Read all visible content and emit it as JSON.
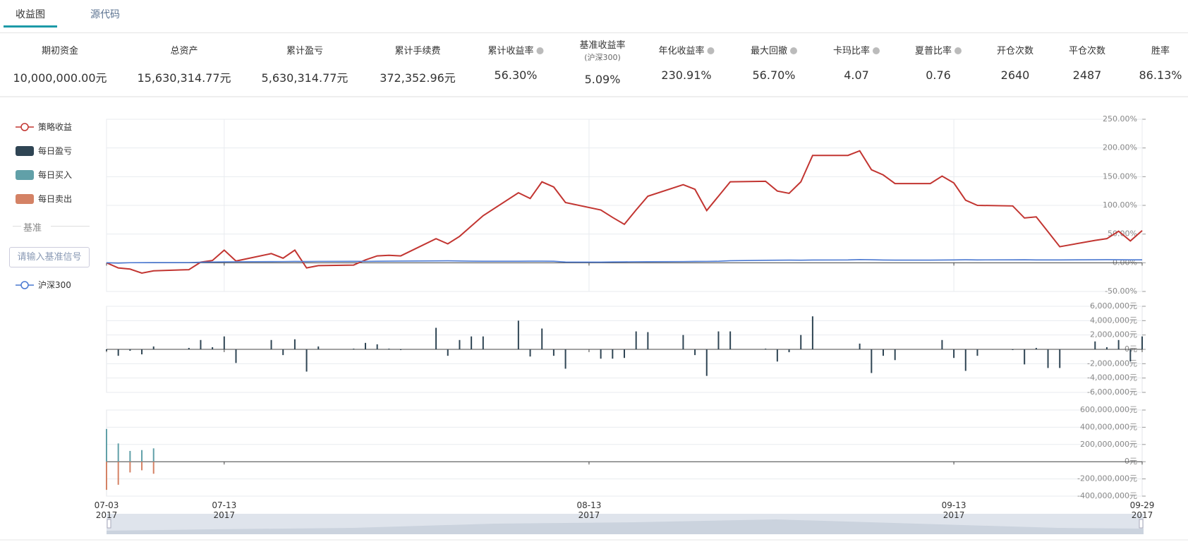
{
  "tabs": {
    "items": [
      "收益图",
      "源代码"
    ],
    "active": 0
  },
  "stats": [
    {
      "label": "期初资金",
      "value": "10,000,000.00元"
    },
    {
      "label": "总资产",
      "value": "15,630,314.77元"
    },
    {
      "label": "累计盈亏",
      "value": "5,630,314.77元"
    },
    {
      "label": "累计手续费",
      "value": "372,352.96元"
    },
    {
      "label": "累计收益率",
      "value": "56.30%",
      "info": true
    },
    {
      "label": "基准收益率",
      "sublabel": "(沪深300)",
      "value": "5.09%"
    },
    {
      "label": "年化收益率",
      "value": "230.91%",
      "info": true
    },
    {
      "label": "最大回撤",
      "value": "56.70%",
      "info": true
    },
    {
      "label": "卡玛比率",
      "value": "4.07",
      "info": true
    },
    {
      "label": "夏普比率",
      "value": "0.76",
      "info": true
    },
    {
      "label": "开仓次数",
      "value": "2640"
    },
    {
      "label": "平仓次数",
      "value": "2487"
    },
    {
      "label": "胜率",
      "value": "86.13%"
    }
  ],
  "benchmark_panel": {
    "title": "基准",
    "placeholder": "请输入基准信号"
  },
  "chart_data": [
    {
      "type": "line",
      "grid": true,
      "xgrid": true,
      "x": [
        "2017-07-03",
        "2017-07-04",
        "2017-07-05",
        "2017-07-06",
        "2017-07-07",
        "2017-07-10",
        "2017-07-11",
        "2017-07-12",
        "2017-07-13",
        "2017-07-14",
        "2017-07-17",
        "2017-07-18",
        "2017-07-19",
        "2017-07-20",
        "2017-07-21",
        "2017-07-24",
        "2017-07-25",
        "2017-07-26",
        "2017-07-27",
        "2017-07-28",
        "2017-07-31",
        "2017-08-01",
        "2017-08-02",
        "2017-08-03",
        "2017-08-04",
        "2017-08-07",
        "2017-08-08",
        "2017-08-09",
        "2017-08-10",
        "2017-08-11",
        "2017-08-14",
        "2017-08-15",
        "2017-08-16",
        "2017-08-17",
        "2017-08-18",
        "2017-08-21",
        "2017-08-22",
        "2017-08-23",
        "2017-08-24",
        "2017-08-25",
        "2017-08-28",
        "2017-08-29",
        "2017-08-30",
        "2017-08-31",
        "2017-09-01",
        "2017-09-04",
        "2017-09-05",
        "2017-09-06",
        "2017-09-07",
        "2017-09-08",
        "2017-09-11",
        "2017-09-12",
        "2017-09-13",
        "2017-09-14",
        "2017-09-15",
        "2017-09-18",
        "2017-09-19",
        "2017-09-20",
        "2017-09-21",
        "2017-09-22",
        "2017-09-25",
        "2017-09-26",
        "2017-09-27",
        "2017-09-28",
        "2017-09-29"
      ],
      "xlim": [
        "2017-07-03",
        "2017-09-29"
      ],
      "xticks": [
        {
          "value": "2017-07-03",
          "label": "07-03\n2017"
        },
        {
          "value": "2017-07-13",
          "label": "07-13\n2017"
        },
        {
          "value": "2017-08-13",
          "label": "08-13\n2017"
        },
        {
          "value": "2017-09-13",
          "label": "09-13\n2017"
        },
        {
          "value": "2017-09-29",
          "label": "09-29\n2017"
        }
      ],
      "ylim": [
        -50,
        250
      ],
      "yticks": [
        {
          "value": -50,
          "label": "-50.00%"
        },
        {
          "value": 0,
          "label": "0.00%"
        },
        {
          "value": 50,
          "label": "50.00%"
        },
        {
          "value": 100,
          "label": "100.00%"
        },
        {
          "value": 150,
          "label": "150.00%"
        },
        {
          "value": 200,
          "label": "200.00%"
        },
        {
          "value": 250,
          "label": "250.00%"
        }
      ],
      "series": [
        {
          "name": "策略收益",
          "color": "#c23531",
          "values": [
            0,
            -9,
            -11,
            -18,
            -14,
            -12,
            1,
            4,
            22,
            3,
            16,
            8,
            22,
            -9,
            -5,
            -4,
            5,
            12,
            13,
            12,
            42,
            33,
            46,
            64,
            82,
            122,
            112,
            141,
            132,
            105,
            92,
            79,
            67,
            92,
            116,
            136,
            128,
            91,
            116,
            141,
            142,
            125,
            121,
            141,
            187,
            187,
            195,
            162,
            153,
            138,
            138,
            151,
            139,
            109,
            100,
            99,
            78,
            80,
            54,
            28,
            39,
            42,
            55,
            38,
            56
          ]
        },
        {
          "name": "沪深300",
          "color": "#4a78d1",
          "values": [
            0,
            -0.6,
            0.1,
            0.2,
            0.3,
            0.4,
            0.9,
            1.3,
            1.6,
            1.8,
            2.0,
            2.1,
            2.3,
            2.2,
            2.4,
            2.5,
            2.4,
            2.6,
            2.8,
            3.0,
            3.2,
            3.4,
            3.1,
            2.8,
            2.6,
            2.7,
            2.8,
            2.8,
            2.6,
            1.2,
            1.1,
            1.4,
            1.6,
            1.8,
            1.9,
            2.1,
            2.3,
            2.4,
            2.6,
            3.6,
            4.3,
            4.5,
            4.6,
            4.5,
            4.8,
            5.0,
            5.6,
            5.2,
            4.8,
            4.6,
            4.6,
            4.8,
            5.0,
            5.2,
            5.0,
            5.1,
            5.3,
            5.0,
            4.9,
            5.0,
            5.2,
            5.4,
            5.3,
            5.1,
            5.09
          ]
        }
      ]
    },
    {
      "type": "bar",
      "grid": true,
      "ylim": [
        -6000000,
        6000000
      ],
      "yticks": [
        {
          "value": -6000000,
          "label": "-6,000,000元"
        },
        {
          "value": -4000000,
          "label": "-4,000,000元"
        },
        {
          "value": -2000000,
          "label": "-2,000,000元"
        },
        {
          "value": 0,
          "label": "0元"
        },
        {
          "value": 2000000,
          "label": "2,000,000元"
        },
        {
          "value": 4000000,
          "label": "4,000,000元"
        },
        {
          "value": 6000000,
          "label": "6,000,000元"
        }
      ],
      "series": [
        {
          "name": "每日盈亏",
          "color": "#2f4554",
          "values": [
            -200000,
            -900000,
            -200000,
            -700000,
            400000,
            200000,
            1300000,
            300000,
            1800000,
            -1900000,
            1300000,
            -800000,
            1400000,
            -3100000,
            400000,
            100000,
            900000,
            700000,
            100000,
            -100000,
            3000000,
            -900000,
            1300000,
            1800000,
            1800000,
            4000000,
            -1000000,
            2900000,
            -900000,
            -2700000,
            -1300000,
            -1300000,
            -1200000,
            2500000,
            2400000,
            2000000,
            -800000,
            -3700000,
            2500000,
            2500000,
            100000,
            -1700000,
            -400000,
            2000000,
            4600000,
            0,
            800000,
            -3300000,
            -900000,
            -1500000,
            0,
            1300000,
            -1200000,
            -3000000,
            -900000,
            -100000,
            -2100000,
            200000,
            -2600000,
            -2600000,
            1100000,
            300000,
            1300000,
            -1700000,
            1800000
          ]
        }
      ]
    },
    {
      "type": "bar",
      "grid": true,
      "ylim": [
        -400000000,
        600000000
      ],
      "yticks": [
        {
          "value": -400000000,
          "label": "-400,000,000元"
        },
        {
          "value": -200000000,
          "label": "-200,000,000元"
        },
        {
          "value": 0,
          "label": "0元"
        },
        {
          "value": 200000000,
          "label": "200,000,000元"
        },
        {
          "value": 400000000,
          "label": "400,000,000元"
        },
        {
          "value": 600000000,
          "label": "600,000,000元"
        }
      ],
      "series": [
        {
          "name": "每日买入",
          "color": "#61a0a8",
          "values": [
            380000000,
            212000000,
            125000000,
            135000000,
            155000000,
            0,
            0,
            0,
            0,
            0,
            0,
            0,
            0,
            0,
            0,
            0,
            0,
            0,
            0,
            0,
            0,
            0,
            0,
            0,
            0,
            0,
            0,
            0,
            0,
            0,
            0,
            0,
            0,
            0,
            0,
            0,
            0,
            0,
            0,
            0,
            0,
            0,
            0,
            0,
            0,
            0,
            0,
            0,
            0,
            0,
            0,
            0,
            0,
            0,
            0,
            0,
            0,
            0,
            0,
            0,
            0,
            0,
            0,
            0,
            0
          ]
        },
        {
          "name": "每日卖出",
          "color": "#d48265",
          "values": [
            -327000000,
            -268000000,
            -125000000,
            -100000000,
            -140000000,
            0,
            0,
            0,
            0,
            0,
            0,
            0,
            0,
            0,
            0,
            0,
            0,
            0,
            0,
            0,
            0,
            0,
            0,
            0,
            0,
            0,
            0,
            0,
            0,
            0,
            0,
            0,
            0,
            0,
            0,
            0,
            0,
            0,
            0,
            0,
            0,
            0,
            0,
            0,
            0,
            0,
            0,
            0,
            0,
            0,
            0,
            0,
            0,
            0,
            0,
            0,
            0,
            0,
            0,
            0,
            0,
            0,
            0,
            0,
            0
          ]
        }
      ]
    }
  ]
}
